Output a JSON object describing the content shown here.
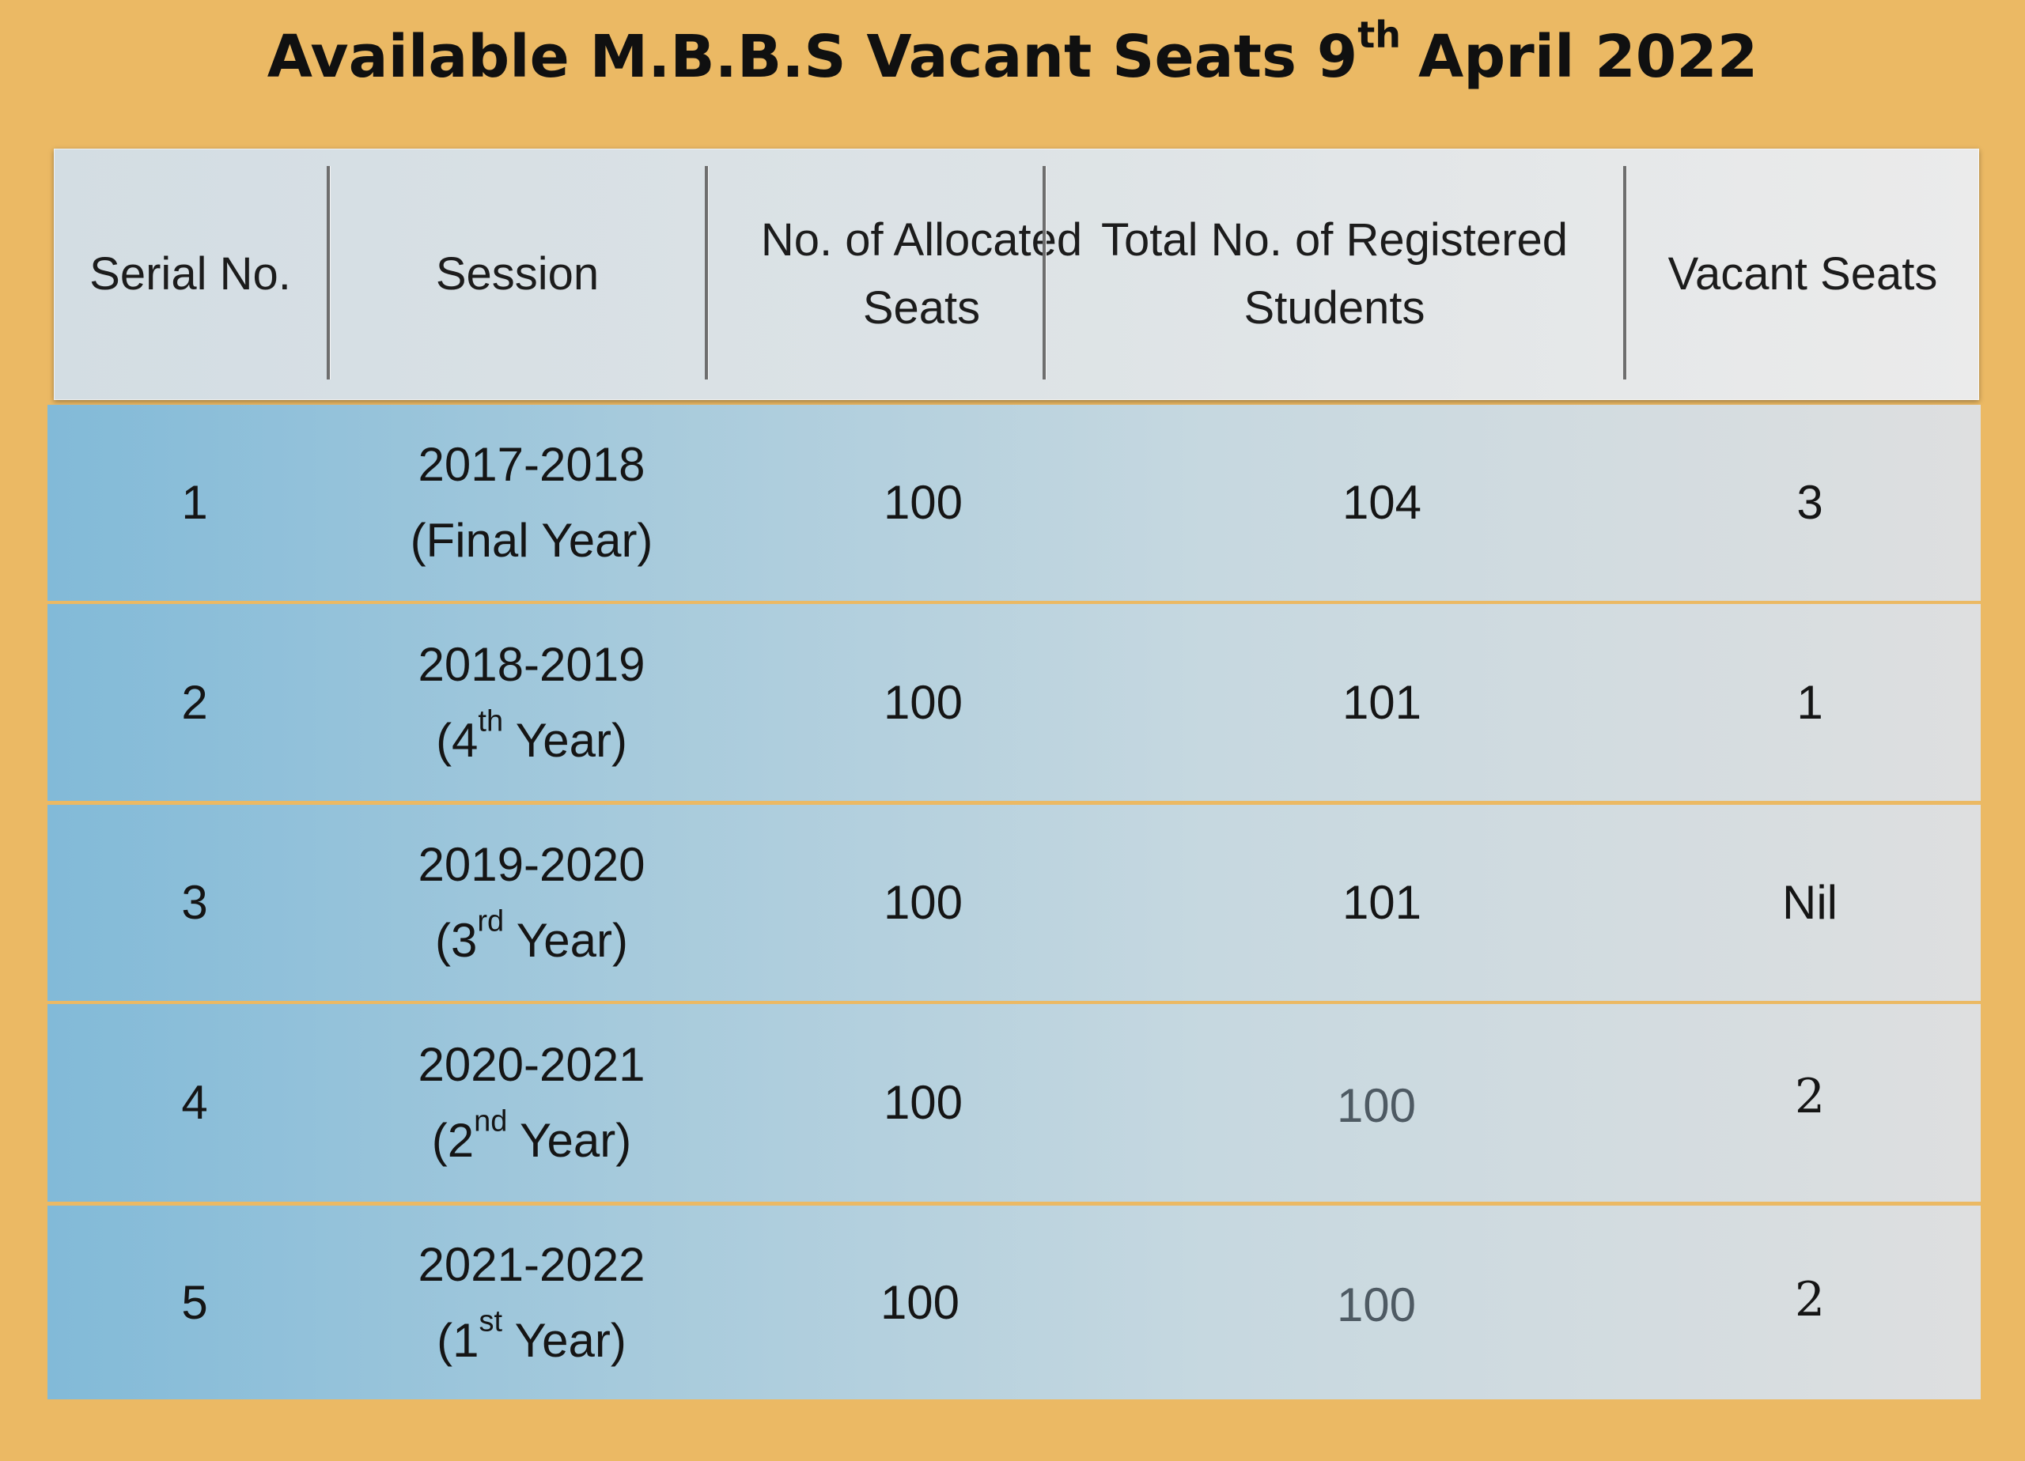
{
  "title": {
    "main": "Available M.B.B.S Vacant Seats 9",
    "sup": "th",
    "rest": "April 2022"
  },
  "columns": [
    "Serial No.",
    "Session",
    "No. of Allocated Seats",
    "Total No. of Registered Students",
    "Vacant Seats"
  ],
  "rows": [
    {
      "serial": "1",
      "session_years": "2017-2018",
      "session_pre": "(Final Year)",
      "session_sup": "",
      "session_post": "",
      "allocated": "100",
      "registered": "104",
      "vacant": "3"
    },
    {
      "serial": "2",
      "session_years": "2018-2019",
      "session_pre": "(4",
      "session_sup": "th",
      "session_post": " Year)",
      "allocated": "100",
      "registered": "101",
      "vacant": "1"
    },
    {
      "serial": "3",
      "session_years": "2019-2020",
      "session_pre": "(3",
      "session_sup": "rd",
      "session_post": " Year)",
      "allocated": "100",
      "registered": "101",
      "vacant": "Nil"
    },
    {
      "serial": "4",
      "session_years": "2020-2021",
      "session_pre": "(2",
      "session_sup": "nd",
      "session_post": " Year)",
      "allocated": "100",
      "registered": "100",
      "vacant": "2"
    },
    {
      "serial": "5",
      "session_years": "2021-2022",
      "session_pre": "(1",
      "session_sup": "st",
      "session_post": " Year)",
      "allocated": "100",
      "registered": "100",
      "vacant": "2"
    }
  ]
}
